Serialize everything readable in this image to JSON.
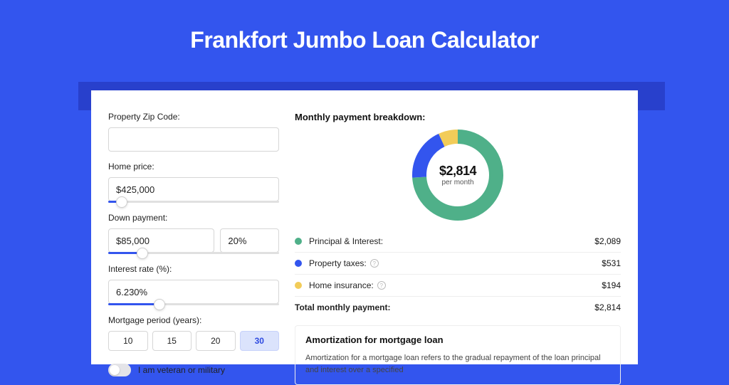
{
  "page": {
    "title": "Frankfort Jumbo Loan Calculator",
    "background_color": "#3355ee",
    "shadow_color": "#2840cc",
    "panel_bg": "#ffffff"
  },
  "form": {
    "zip": {
      "label": "Property Zip Code:",
      "value": ""
    },
    "home_price": {
      "label": "Home price:",
      "value": "$425,000",
      "slider_pct": 8
    },
    "down_payment": {
      "label": "Down payment:",
      "amount": "$85,000",
      "percent": "20%",
      "slider_pct": 20
    },
    "interest_rate": {
      "label": "Interest rate (%):",
      "value": "6.230%",
      "slider_pct": 30
    },
    "mortgage_period": {
      "label": "Mortgage period (years):",
      "options": [
        "10",
        "15",
        "20",
        "30"
      ],
      "selected": "30"
    },
    "veteran": {
      "label": "I am veteran or military",
      "checked": false
    }
  },
  "breakdown": {
    "title": "Monthly payment breakdown:",
    "total_amount": "$2,814",
    "per_month_label": "per month",
    "items": [
      {
        "label": "Principal & Interest:",
        "value": "$2,089",
        "color": "#4fb089",
        "pct": 74,
        "help": false
      },
      {
        "label": "Property taxes:",
        "value": "$531",
        "color": "#3355ee",
        "pct": 19,
        "help": true
      },
      {
        "label": "Home insurance:",
        "value": "$194",
        "color": "#f2cc59",
        "pct": 7,
        "help": true
      }
    ],
    "total_row": {
      "label": "Total monthly payment:",
      "value": "$2,814"
    }
  },
  "donut": {
    "size": 128,
    "stroke_width": 20,
    "bg": "#ffffff"
  },
  "amortization": {
    "title": "Amortization for mortgage loan",
    "text": "Amortization for a mortgage loan refers to the gradual repayment of the loan principal and interest over a specified"
  }
}
